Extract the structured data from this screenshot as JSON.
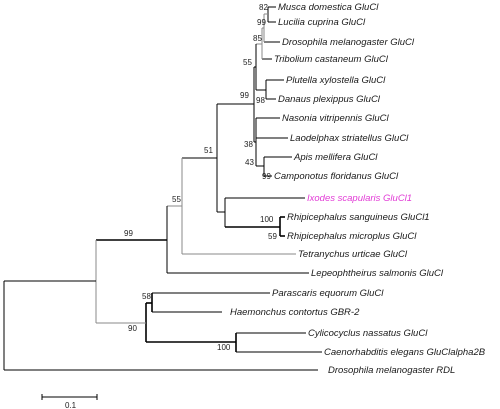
{
  "tree": {
    "taxa": [
      {
        "id": "t1",
        "label": "Musca domestica GluCl"
      },
      {
        "id": "t2",
        "label": "Lucilia cuprina GluCl"
      },
      {
        "id": "t3",
        "label": "Drosophila melanogaster GluCl"
      },
      {
        "id": "t4",
        "label": "Tribolium castaneum GluCl"
      },
      {
        "id": "t5",
        "label": "Plutella xylostella GluCl"
      },
      {
        "id": "t6",
        "label": "Danaus plexippus GluCl"
      },
      {
        "id": "t7",
        "label": "Nasonia vitripennis GluCl"
      },
      {
        "id": "t8",
        "label": "Laodelphax striatellus GluCl"
      },
      {
        "id": "t9",
        "label": "Apis mellifera GluCl"
      },
      {
        "id": "t10",
        "label": "Camponotus floridanus GluCl"
      },
      {
        "id": "t11",
        "label": "Ixodes scapularis GluCl1",
        "highlight": true
      },
      {
        "id": "t12",
        "label": "Rhipicephalus sanguineus GluCl1"
      },
      {
        "id": "t13",
        "label": "Rhipicephalus microplus GluCl"
      },
      {
        "id": "t14",
        "label": "Tetranychus urticae GluCl"
      },
      {
        "id": "t15",
        "label": "Lepeophtheirus salmonis GluCl"
      },
      {
        "id": "t16",
        "label": "Parascaris equorum GluCl"
      },
      {
        "id": "t17",
        "label": "Haemonchus contortus GBR-2"
      },
      {
        "id": "t18",
        "label": "Cylicocyclus nassatus GluCl"
      },
      {
        "id": "t19",
        "label": "Caenorhabditis elegans GluClalpha2B"
      },
      {
        "id": "t20",
        "label": "Drosophila melanogaster RDL"
      }
    ],
    "bootstrap": {
      "b82": "82",
      "b99a": "99",
      "b85": "85",
      "b55a": "55",
      "b98": "98",
      "b99b": "99",
      "b38": "38",
      "b43": "43",
      "b99c": "99",
      "b51": "51",
      "b100a": "100",
      "b59": "59",
      "b55b": "55",
      "b99d": "99",
      "b58": "58",
      "b90": "90",
      "b100b": "100"
    },
    "highlight_color": "#e23bd6"
  },
  "scale_bar": {
    "label": "0.1"
  }
}
